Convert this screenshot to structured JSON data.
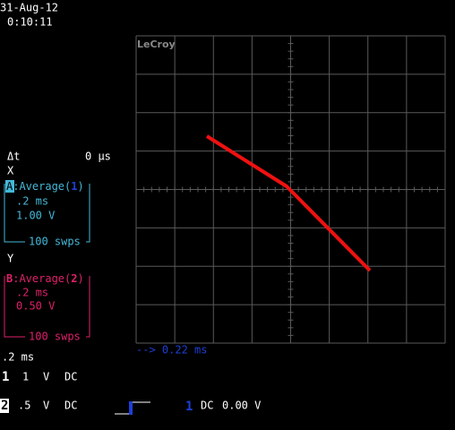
{
  "header": {
    "date": "31-Aug-12",
    "time": "0:10:11"
  },
  "brand": "LeCroy",
  "cursor": {
    "label": "Δt",
    "value": "0 μs"
  },
  "x_trace": {
    "axis": "X",
    "badge": "A",
    "function": ":Average(",
    "source": "1",
    "close": ")",
    "timebase": ".2 ms",
    "scale": "1.00 V",
    "sweeps": "100 swps"
  },
  "y_trace": {
    "axis": "Y",
    "badge": "B",
    "function": ":Average(",
    "source": "2",
    "close": ")",
    "timebase": ".2 ms",
    "scale": "0.50 V",
    "sweeps": "100 swps"
  },
  "timebase": ".2 ms",
  "channels": [
    {
      "number": "1",
      "scale": "1",
      "unit": "V",
      "coupling": "DC"
    },
    {
      "number": "2",
      "scale": ".5",
      "unit": "V",
      "coupling": "DC"
    }
  ],
  "trigger": {
    "source": "1",
    "coupling": "DC",
    "level": "0.00 V"
  },
  "delay": "--> 0.22 ms"
}
